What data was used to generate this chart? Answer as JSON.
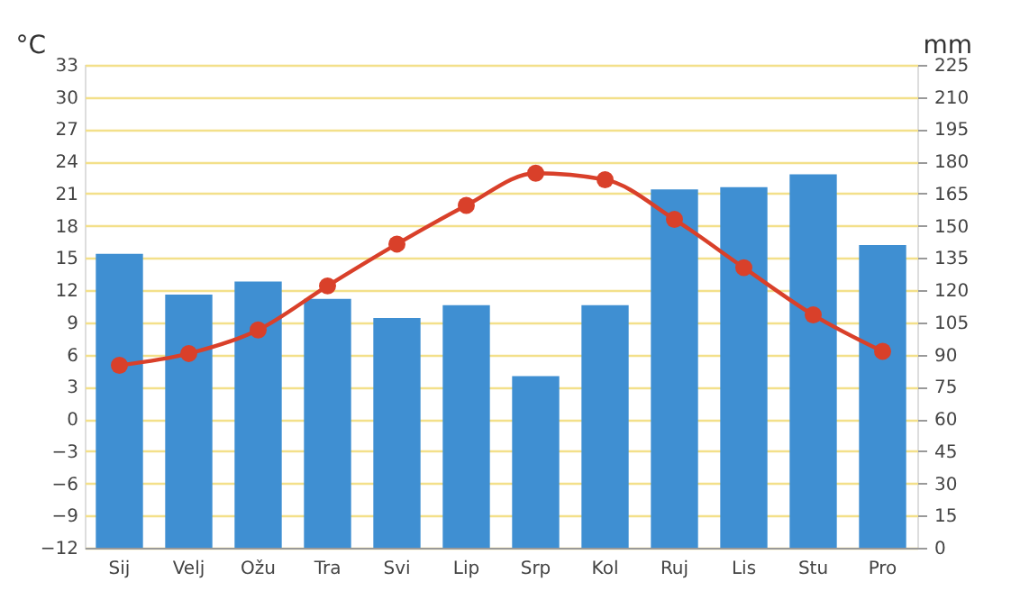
{
  "chart_data": {
    "type": "bar",
    "ylabel": "°C",
    "y2label": "mm",
    "categories": [
      "Sij",
      "Velj",
      "Ožu",
      "Tra",
      "Svi",
      "Lip",
      "Srp",
      "Kol",
      "Ruj",
      "Lis",
      "Stu",
      "Pro"
    ],
    "series": [
      {
        "axis": "y2",
        "color": "#3f8fd2",
        "values": [
          137,
          118,
          124,
          116,
          107,
          113,
          80,
          113,
          167,
          168,
          174,
          141
        ]
      },
      {
        "type": "line",
        "axis": "y",
        "color": "#d9402a",
        "marker": "circle",
        "line_style": "solid",
        "values": [
          5.0,
          6.1,
          8.3,
          12.4,
          16.3,
          19.9,
          22.9,
          22.3,
          18.6,
          14.1,
          9.7,
          6.3
        ]
      }
    ],
    "ylim": [
      -12,
      33
    ],
    "yticks": [
      -12,
      -9,
      -6,
      -3,
      0,
      3,
      6,
      9,
      12,
      15,
      18,
      21,
      24,
      27,
      30,
      33
    ],
    "y2lim": [
      0,
      225
    ],
    "y2ticks": [
      0,
      15,
      30,
      45,
      60,
      75,
      90,
      105,
      120,
      135,
      150,
      165,
      180,
      195,
      210,
      225
    ],
    "grid": "y"
  }
}
